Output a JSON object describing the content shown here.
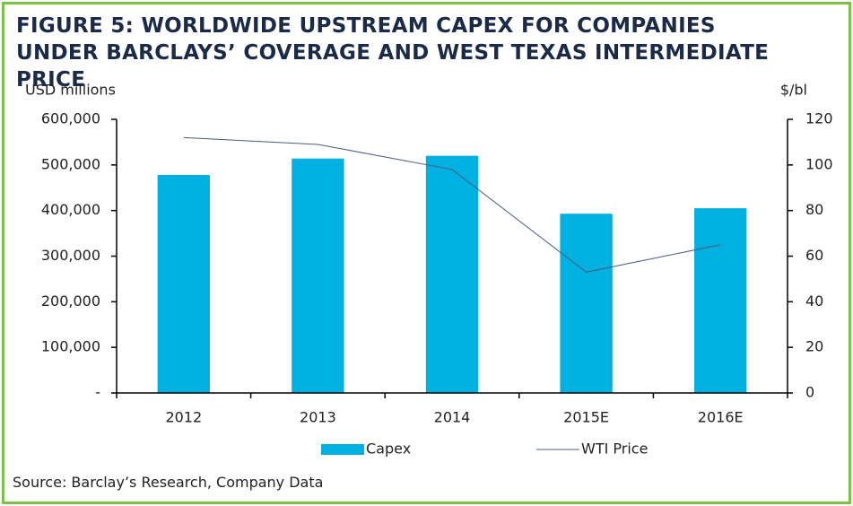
{
  "chart_data": {
    "type": "bar",
    "title": "FIGURE 5: WORLDWIDE UPSTREAM CAPEX FOR COMPANIES UNDER BARCLAYS’ COVERAGE AND WEST TEXAS INTERMEDIATE PRICE",
    "y_label": "USD millions",
    "y2_label": "$/bl",
    "categories": [
      "2012",
      "2013",
      "2014",
      "2015E",
      "2016E"
    ],
    "series": [
      {
        "name": "Capex",
        "type": "bar",
        "color": "#00b0e0",
        "values": [
          478000,
          514000,
          520000,
          393000,
          405000
        ]
      },
      {
        "name": "WTI Price",
        "type": "line",
        "axis": "y2",
        "color": "#4a5d7e",
        "values": [
          112,
          109,
          98,
          53,
          65
        ]
      }
    ],
    "ylim": [
      0,
      600000
    ],
    "yticks": [
      {
        "value": 0,
        "label": "-"
      },
      {
        "value": 100000,
        "label": "100,000"
      },
      {
        "value": 200000,
        "label": "200,000"
      },
      {
        "value": 300000,
        "label": "300,000"
      },
      {
        "value": 400000,
        "label": "400,000"
      },
      {
        "value": 500000,
        "label": "500,000"
      },
      {
        "value": 600000,
        "label": "600,000"
      }
    ],
    "y2lim": [
      0,
      120
    ],
    "y2ticks": [
      0,
      20,
      40,
      60,
      80,
      100,
      120
    ],
    "legend": "bottom",
    "source": "Source: Barclay’s Research, Company Data"
  }
}
